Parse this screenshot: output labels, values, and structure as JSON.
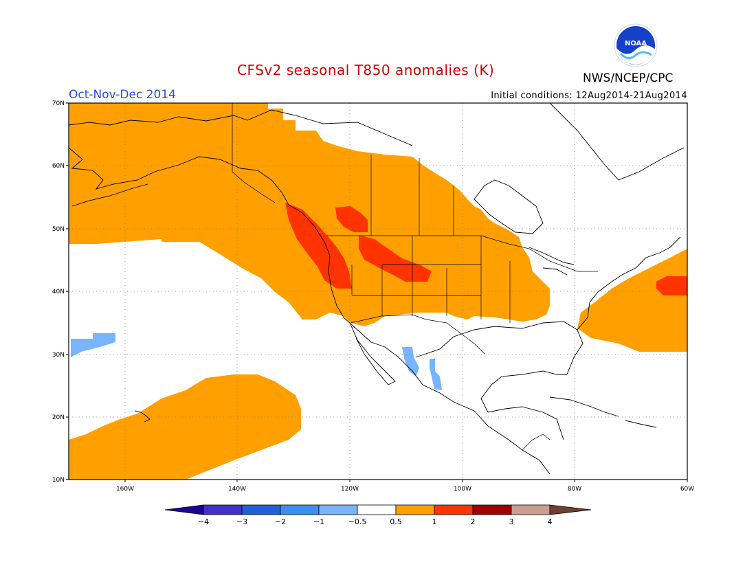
{
  "header": {
    "title": "CFSv2 seasonal T850 anomalies (K)",
    "agency": "NWS/NCEP/CPC",
    "logo_text": "NOAA",
    "period": "Oct-Nov-Dec 2014",
    "initial_conditions": "Initial conditions: 12Aug2014-21Aug2014"
  },
  "map": {
    "lon_range": [
      -170,
      -60
    ],
    "lat_range": [
      10,
      70
    ],
    "lat_ticks": [
      "70N",
      "60N",
      "50N",
      "40N",
      "30N",
      "20N",
      "10N"
    ],
    "lon_ticks": [
      "160W",
      "140W",
      "120W",
      "100W",
      "80W",
      "60W"
    ],
    "colors": {
      "warm": "#ffa000",
      "strong_warm": "#ff3300",
      "cool": "#78b4ff"
    }
  },
  "colorbar": {
    "labels": [
      "-4",
      "-3",
      "-2",
      "-1",
      "-0.5",
      "0.5",
      "1",
      "2",
      "3",
      "4"
    ],
    "colors": [
      "#200090",
      "#4430c8",
      "#2060d8",
      "#3a90f0",
      "#78b4ff",
      "#ffffff",
      "#ffa000",
      "#ff3300",
      "#a00000",
      "#c8a090",
      "#704030"
    ]
  }
}
